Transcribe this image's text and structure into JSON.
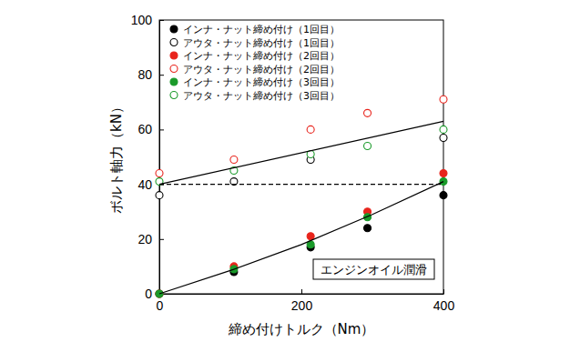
{
  "chart_data": {
    "type": "scatter",
    "x_label": "締め付けトルク（Nm）",
    "y_label": "ボルト軸力（kN）",
    "annotation": "エンジンオイル潤滑",
    "x": [
      0,
      105,
      213,
      293,
      400
    ],
    "xlim": [
      0,
      400
    ],
    "xticks": [
      0,
      200,
      400
    ],
    "ylim": [
      0,
      100
    ],
    "yticks": [
      0,
      20,
      40,
      60,
      80,
      100
    ],
    "legend": "upper left",
    "series": [
      {
        "name": "インナ・ナット締め付け（1回目）",
        "color": "#000000",
        "marker": "circle",
        "values": [
          0,
          8,
          17,
          24,
          36
        ]
      },
      {
        "name": "アウタ・ナット締め付け（1回目）",
        "color": "#000000",
        "marker": "circle-open",
        "values": [
          36,
          41,
          49,
          null,
          57
        ]
      },
      {
        "name": "インナ・ナット締め付け（2回目）",
        "color": "#e8241c",
        "marker": "circle",
        "values": [
          0,
          10,
          21,
          30,
          44
        ]
      },
      {
        "name": "アウタ・ナット締め付け（2回目）",
        "color": "#e8241c",
        "marker": "circle-open",
        "values": [
          44,
          49,
          60,
          66,
          71
        ]
      },
      {
        "name": "インナ・ナット締め付け（3回目）",
        "color": "#1a9a2a",
        "marker": "circle",
        "values": [
          0,
          9,
          18,
          28,
          41
        ]
      },
      {
        "name": "アウタ・ナット締め付け（3回目）",
        "color": "#1a9a2a",
        "marker": "circle-open",
        "values": [
          41,
          45,
          51,
          54,
          60
        ]
      },
      {
        "type": "line",
        "color": "#000000",
        "line_style": "solid",
        "x": [
          0,
          400
        ],
        "values": [
          40,
          63
        ]
      },
      {
        "type": "line",
        "color": "#000000",
        "line_style": "solid",
        "x": [
          0,
          100,
          200,
          300,
          400
        ],
        "values": [
          0,
          8.5,
          18,
          29,
          41
        ]
      },
      {
        "type": "line",
        "color": "#000000",
        "line_style": "dashed",
        "x": [
          0,
          400
        ],
        "values": [
          40,
          40
        ]
      }
    ]
  }
}
